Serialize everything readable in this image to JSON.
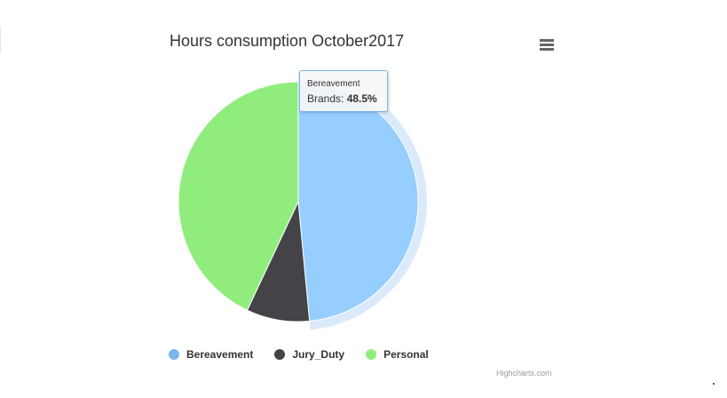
{
  "chart_data": {
    "type": "pie",
    "title": "Hours consumption October2017",
    "series_name": "Brands",
    "slices": [
      {
        "name": "Bereavement",
        "value": 48.5,
        "color": "#95ceff"
      },
      {
        "name": "Jury_Duty",
        "value": 8.5,
        "color": "#434348"
      },
      {
        "name": "Personal",
        "value": 43.0,
        "color": "#90ed7d"
      }
    ],
    "selected_slice": "Bereavement",
    "legend_placement": "bottom"
  },
  "legend": {
    "items": [
      {
        "label": "Bereavement",
        "color": "#7cb5ec"
      },
      {
        "label": "Jury_Duty",
        "color": "#434348"
      },
      {
        "label": "Personal",
        "color": "#90ed7d"
      }
    ]
  },
  "tooltip": {
    "header": "Bereavement",
    "series_label": "Brands: ",
    "value": "48.5%"
  },
  "menu": {
    "icon": "hamburger-menu-icon"
  },
  "credits": "Highcharts.com",
  "colors": {
    "halo": "#dbeafb",
    "tooltip_border": "#7cb5ec"
  }
}
